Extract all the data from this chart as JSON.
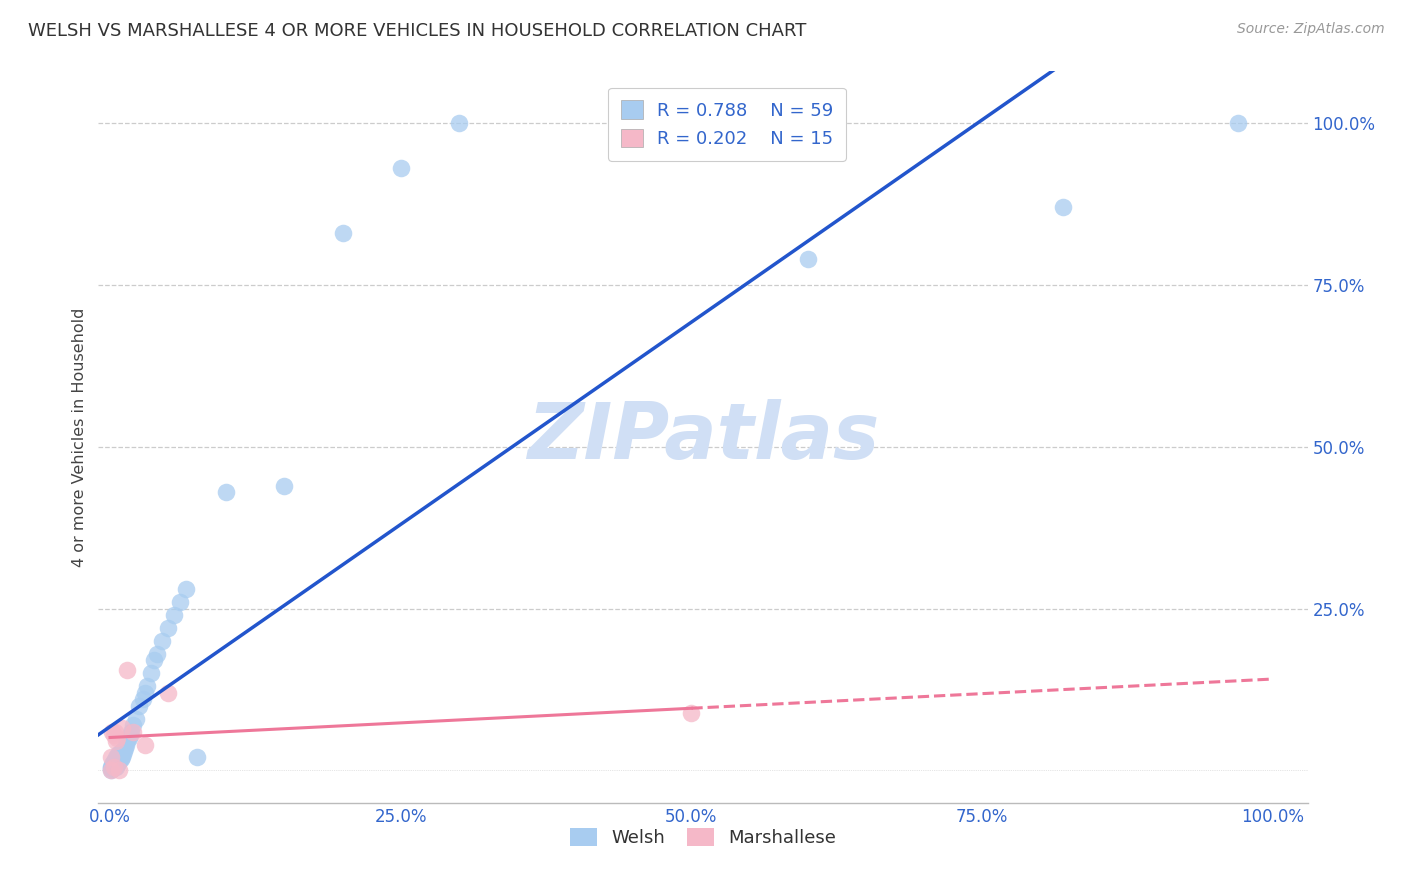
{
  "title": "WELSH VS MARSHALLESE 4 OR MORE VEHICLES IN HOUSEHOLD CORRELATION CHART",
  "source": "Source: ZipAtlas.com",
  "ylabel": "4 or more Vehicles in Household",
  "welsh_R": 0.788,
  "welsh_N": 59,
  "marshallese_R": 0.202,
  "marshallese_N": 15,
  "welsh_color": "#A8CCF0",
  "marshallese_color": "#F5B8C8",
  "welsh_line_color": "#2255CC",
  "marshallese_line_color": "#EE7799",
  "watermark_color": "#D0DFF5",
  "welsh_x": [
    0.001,
    0.001,
    0.001,
    0.002,
    0.002,
    0.002,
    0.003,
    0.003,
    0.003,
    0.004,
    0.004,
    0.004,
    0.005,
    0.005,
    0.005,
    0.005,
    0.006,
    0.006,
    0.006,
    0.007,
    0.007,
    0.007,
    0.008,
    0.008,
    0.009,
    0.009,
    0.01,
    0.01,
    0.011,
    0.012,
    0.013,
    0.014,
    0.015,
    0.016,
    0.017,
    0.018,
    0.02,
    0.022,
    0.025,
    0.028,
    0.03,
    0.032,
    0.035,
    0.038,
    0.04,
    0.045,
    0.05,
    0.055,
    0.06,
    0.065,
    0.075,
    0.1,
    0.15,
    0.2,
    0.25,
    0.3,
    0.6,
    0.82,
    0.97
  ],
  "welsh_y": [
    0.0,
    0.003,
    0.005,
    0.002,
    0.005,
    0.01,
    0.005,
    0.008,
    0.015,
    0.005,
    0.008,
    0.015,
    0.005,
    0.01,
    0.015,
    0.02,
    0.01,
    0.015,
    0.02,
    0.012,
    0.018,
    0.025,
    0.015,
    0.025,
    0.018,
    0.028,
    0.02,
    0.03,
    0.025,
    0.03,
    0.035,
    0.04,
    0.045,
    0.05,
    0.055,
    0.06,
    0.07,
    0.08,
    0.1,
    0.11,
    0.12,
    0.13,
    0.15,
    0.17,
    0.18,
    0.2,
    0.22,
    0.24,
    0.26,
    0.28,
    0.02,
    0.43,
    0.44,
    0.83,
    0.93,
    1.0,
    0.79,
    0.87,
    1.0
  ],
  "marshallese_x": [
    0.001,
    0.001,
    0.002,
    0.003,
    0.003,
    0.004,
    0.005,
    0.006,
    0.008,
    0.01,
    0.015,
    0.02,
    0.03,
    0.05,
    0.5
  ],
  "marshallese_y": [
    0.0,
    0.02,
    0.06,
    0.005,
    0.055,
    0.06,
    0.045,
    0.05,
    0.0,
    0.065,
    0.155,
    0.06,
    0.04,
    0.12,
    0.088
  ],
  "x_ticks": [
    0.0,
    0.25,
    0.5,
    0.75,
    1.0
  ],
  "x_tick_labels": [
    "0.0%",
    "25.0%",
    "50.0%",
    "75.0%",
    "100.0%"
  ],
  "y_ticks": [
    0.0,
    0.25,
    0.5,
    0.75,
    1.0
  ],
  "y_tick_labels": [
    "",
    "25.0%",
    "50.0%",
    "75.0%",
    "100.0%"
  ],
  "xlim": [
    -0.01,
    1.03
  ],
  "ylim": [
    -0.05,
    1.08
  ]
}
